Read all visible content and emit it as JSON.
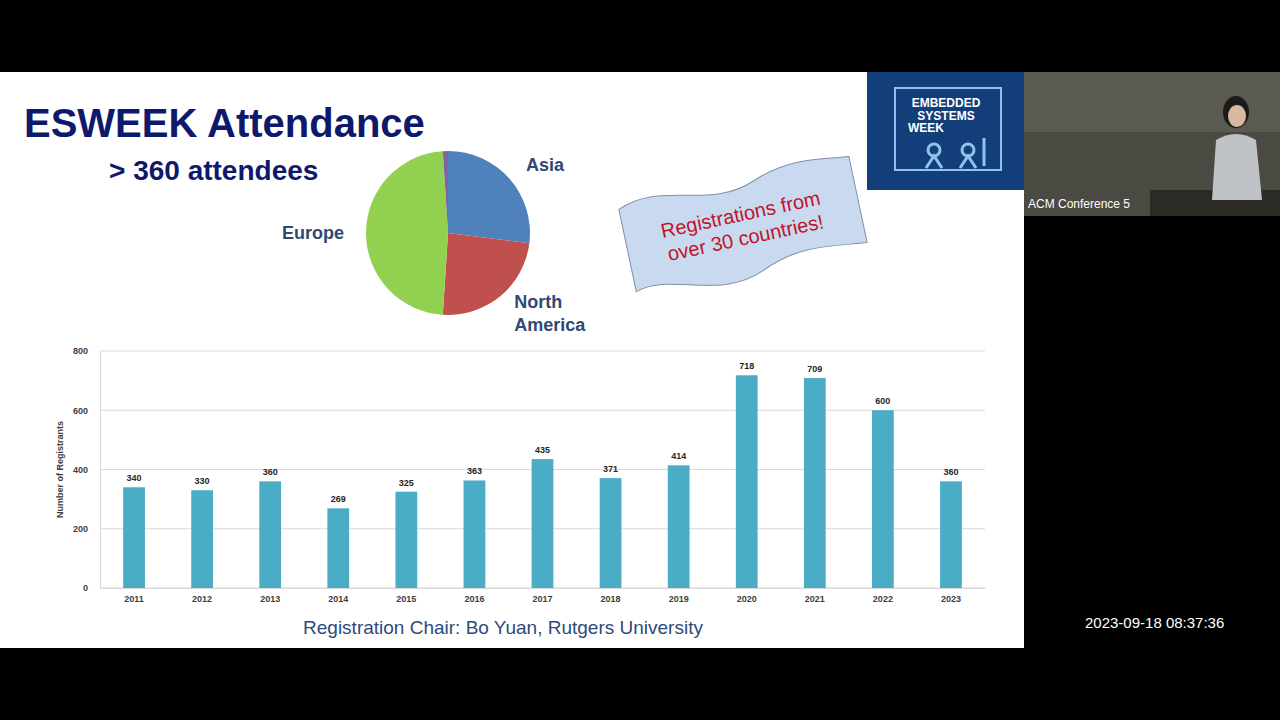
{
  "slide": {
    "title": "ESWEEK Attendance",
    "subtitle": "> 360 attendees",
    "banner": "Registrations from over 30 countries!",
    "caption": "Registration Chair: Bo Yuan, Rutgers University"
  },
  "logo": "EMBEDDED SYSTEMS WEEK",
  "video": {
    "label": "ACM Conference 5",
    "timestamp": "2023-09-18 08:37:36"
  },
  "chart_data": [
    {
      "type": "pie",
      "categories": [
        "Asia",
        "North America",
        "Europe",
        null
      ],
      "values": [
        27,
        24,
        48,
        1
      ],
      "colors": [
        "#4f81bd",
        "#c0504d",
        "#92d050",
        "#8064a2"
      ]
    },
    {
      "type": "bar",
      "y_label": "Number of Registrants",
      "categories": [
        "2011",
        "2012",
        "2013",
        "2014",
        "2015",
        "2016",
        "2017",
        "2018",
        "2019",
        "2020",
        "2021",
        "2022",
        "2023"
      ],
      "values": [
        340,
        330,
        360,
        269,
        325,
        363,
        435,
        371,
        414,
        718,
        709,
        600,
        360
      ],
      "color": "#4bacc6",
      "ylim": [
        0,
        800
      ],
      "yticks": [
        0,
        200,
        400,
        600,
        800
      ],
      "grid": true,
      "data_labels": true
    }
  ]
}
